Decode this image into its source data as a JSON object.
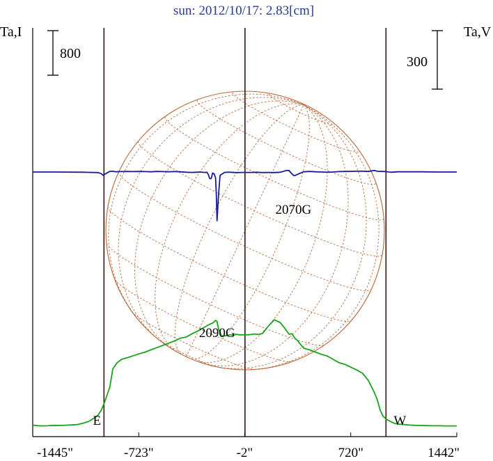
{
  "chart_data": {
    "type": "line",
    "title": "sun: 2012/10/17: 2.83[cm]",
    "left_axis_label": "Ta,I",
    "right_axis_label": "Ta,V",
    "left_scale_bar": "800",
    "right_scale_bar": "300",
    "x_unit_suffix": "\"",
    "x_ticks": [
      -1445,
      -723,
      -2,
      720,
      1442
    ],
    "xlim": [
      -1445,
      1442
    ],
    "grid": false,
    "limb_markers": [
      {
        "label": "E",
        "x": -960
      },
      {
        "label": "W",
        "x": 960
      }
    ],
    "center_marker_x": 0,
    "annotations": [
      {
        "text": "2090G",
        "x": -190
      },
      {
        "text": "2070G",
        "x": 330
      }
    ],
    "colors": {
      "intensity": "#19a319",
      "polarization": "#1a1a99",
      "solar_disk": "#b8683a",
      "markers": "#3a1414",
      "title": "#2b3a8c"
    },
    "series": [
      {
        "name": "Ta,I",
        "x": [
          -1445,
          -1420,
          -1380,
          -1340,
          -1300,
          -1260,
          -1220,
          -1180,
          -1140,
          -1100,
          -1060,
          -1030,
          -1000,
          -980,
          -960,
          -940,
          -920,
          -900,
          -870,
          -840,
          -800,
          -760,
          -720,
          -680,
          -640,
          -600,
          -560,
          -520,
          -480,
          -440,
          -400,
          -360,
          -320,
          -280,
          -260,
          -240,
          -220,
          -200,
          -190,
          -180,
          -160,
          -140,
          -120,
          -100,
          -80,
          -60,
          -40,
          -20,
          0,
          20,
          40,
          60,
          80,
          100,
          120,
          160,
          200,
          240,
          270,
          300,
          320,
          340,
          360,
          380,
          400,
          440,
          480,
          520,
          560,
          600,
          640,
          680,
          720,
          760,
          800,
          840,
          880,
          900,
          920,
          940,
          960,
          980,
          1000,
          1020,
          1040,
          1080,
          1120,
          1160,
          1200,
          1240,
          1280,
          1320,
          1360,
          1400,
          1442
        ],
        "y": [
          20,
          10,
          5,
          8,
          15,
          12,
          18,
          22,
          30,
          55,
          90,
          140,
          200,
          280,
          400,
          550,
          700,
          1030,
          1140,
          1200,
          1230,
          1265,
          1300,
          1330,
          1370,
          1410,
          1450,
          1490,
          1530,
          1580,
          1600,
          1660,
          1710,
          1770,
          1800,
          1830,
          1850,
          1900,
          1880,
          1750,
          1620,
          1620,
          1630,
          1640,
          1630,
          1650,
          1640,
          1640,
          1640,
          1640,
          1645,
          1655,
          1650,
          1650,
          1665,
          1800,
          1910,
          1860,
          1760,
          1650,
          1660,
          1580,
          1530,
          1460,
          1400,
          1370,
          1330,
          1290,
          1260,
          1200,
          1140,
          1110,
          1060,
          1010,
          950,
          820,
          610,
          480,
          290,
          180,
          130,
          100,
          70,
          50,
          40,
          30,
          20,
          15,
          12,
          10,
          8,
          7,
          5,
          5,
          5
        ]
      },
      {
        "name": "Ta,V",
        "x": [
          -1445,
          -1300,
          -1100,
          -1000,
          -980,
          -965,
          -955,
          -940,
          -920,
          -900,
          -880,
          -860,
          -840,
          -800,
          -760,
          -720,
          -680,
          -640,
          -600,
          -560,
          -520,
          -480,
          -440,
          -400,
          -360,
          -330,
          -300,
          -280,
          -270,
          -260,
          -250,
          -240,
          -230,
          -220,
          -210,
          -200,
          -195,
          -190,
          -180,
          -170,
          -160,
          -150,
          -140,
          -120,
          -100,
          -60,
          -20,
          0,
          40,
          80,
          120,
          160,
          200,
          240,
          260,
          280,
          300,
          310,
          320,
          330,
          340,
          350,
          370,
          400,
          440,
          480,
          520,
          560,
          600,
          640,
          700,
          760,
          800,
          840,
          880,
          900,
          920,
          940,
          960,
          980,
          1000,
          1040,
          1100,
          1200,
          1300,
          1442
        ],
        "y": [
          0,
          0,
          -1,
          -3,
          -8,
          -17,
          -12,
          -5,
          3,
          4,
          1,
          2,
          2,
          3,
          2,
          3,
          2,
          1,
          3,
          2,
          1,
          2,
          1,
          -1,
          -2,
          -1,
          0,
          -2,
          -2,
          -1,
          -12,
          -34,
          -34,
          -5,
          -10,
          -30,
          -120,
          -250,
          -120,
          -18,
          -12,
          -8,
          -2,
          -1,
          -1,
          -3,
          -2,
          -2,
          -2,
          -1,
          -3,
          -2,
          -3,
          -1,
          3,
          8,
          8,
          -2,
          -9,
          -17,
          -18,
          -15,
          -8,
          1,
          3,
          1,
          0,
          -1,
          0,
          2,
          3,
          4,
          4,
          3,
          8,
          4,
          3,
          3,
          2,
          0,
          -1,
          1,
          1,
          1,
          0,
          0
        ]
      }
    ]
  }
}
